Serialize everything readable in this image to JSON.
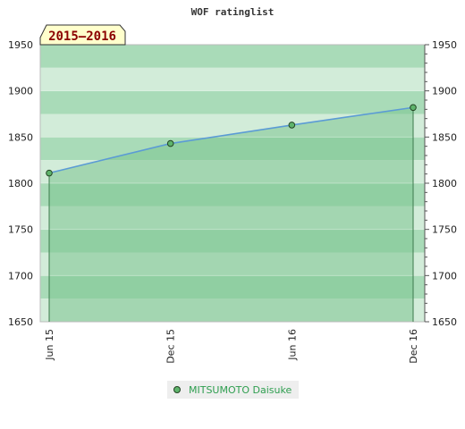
{
  "chart_data": {
    "type": "line",
    "title": "WOF ratinglist",
    "period_label": "2015–2016",
    "x_ticks": [
      "Jun 15",
      "Dec 15",
      "Jun 16",
      "Dec 16"
    ],
    "ylim": [
      1650,
      1950
    ],
    "y_ticks": [
      1650,
      1700,
      1750,
      1800,
      1850,
      1900,
      1950
    ],
    "series": [
      {
        "name": "MITSUMOTO Daisuke",
        "x": [
          "Jun 15",
          "Dec 15",
          "Jun 16",
          "Dec 16"
        ],
        "values": [
          1811,
          1843,
          1863,
          1882
        ]
      }
    ],
    "legend": "bottom-center",
    "colors": {
      "line": "#5b9bd5",
      "marker": "#5fb46c",
      "fill": "#7cc48f",
      "band_dark": "#a9dbb8",
      "band_light": "#d2ecd9",
      "legend_text": "#2e9e4f",
      "badge_bg": "#ffffcc",
      "badge_text": "#8b0000"
    }
  }
}
